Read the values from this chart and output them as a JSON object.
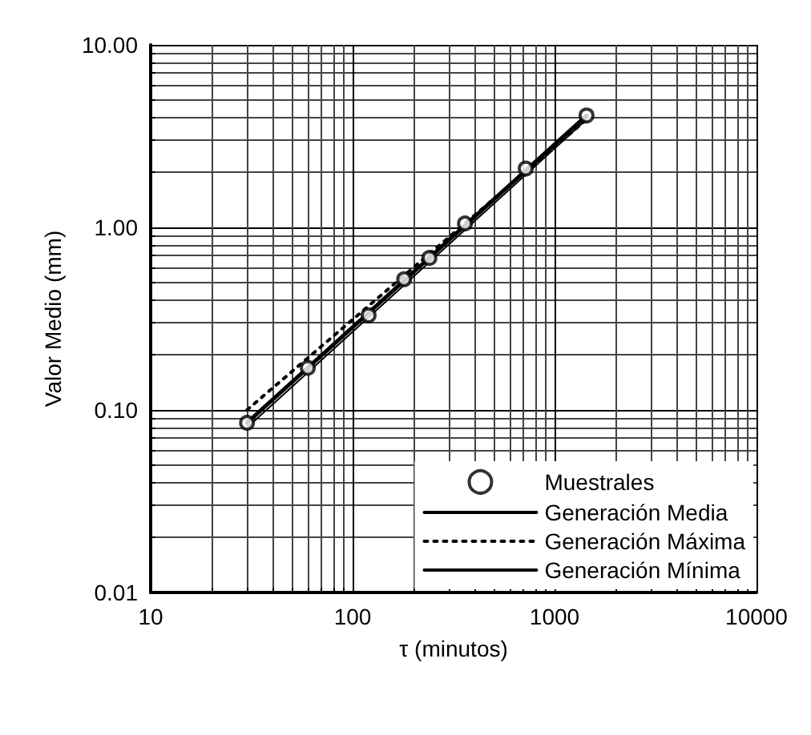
{
  "chart_data": {
    "type": "line",
    "xlabel": "τ (minutos)",
    "ylabel": "Valor Medio (mm)",
    "log": "xy",
    "grid": true,
    "legend": "bottom right",
    "xlim": [
      10,
      10000
    ],
    "xticks": [
      10,
      100,
      1000,
      10000
    ],
    "ylim": [
      0.01,
      10
    ],
    "yticks": [
      {
        "value": 0.01,
        "label": "0.01"
      },
      {
        "value": 0.1,
        "label": "0.10"
      },
      {
        "value": 1,
        "label": "1.00"
      },
      {
        "value": 10,
        "label": "10.00"
      }
    ],
    "series": [
      {
        "name": "Muestrales",
        "type": "scatter",
        "marker": "circle",
        "color": "#000000",
        "x": [
          30,
          60,
          120,
          180,
          240,
          360,
          720,
          1440
        ],
        "values": [
          0.085,
          0.17,
          0.33,
          0.52,
          0.68,
          1.05,
          2.1,
          4.1
        ]
      },
      {
        "name": "Generación Media",
        "line_style": "solid",
        "marker": "none",
        "color": "#000000",
        "x": [
          30,
          1440
        ],
        "values": [
          0.085,
          4.1
        ]
      },
      {
        "name": "Generación Máxima",
        "line_style": "dotted",
        "marker": "none",
        "color": "#000000",
        "x": [
          30,
          1440
        ],
        "values": [
          0.1,
          3.9
        ]
      },
      {
        "name": "Generación Mínima",
        "line_style": "solid",
        "marker": "none",
        "color": "#000000",
        "x": [
          30,
          1440
        ],
        "values": [
          0.08,
          3.9
        ]
      }
    ]
  }
}
